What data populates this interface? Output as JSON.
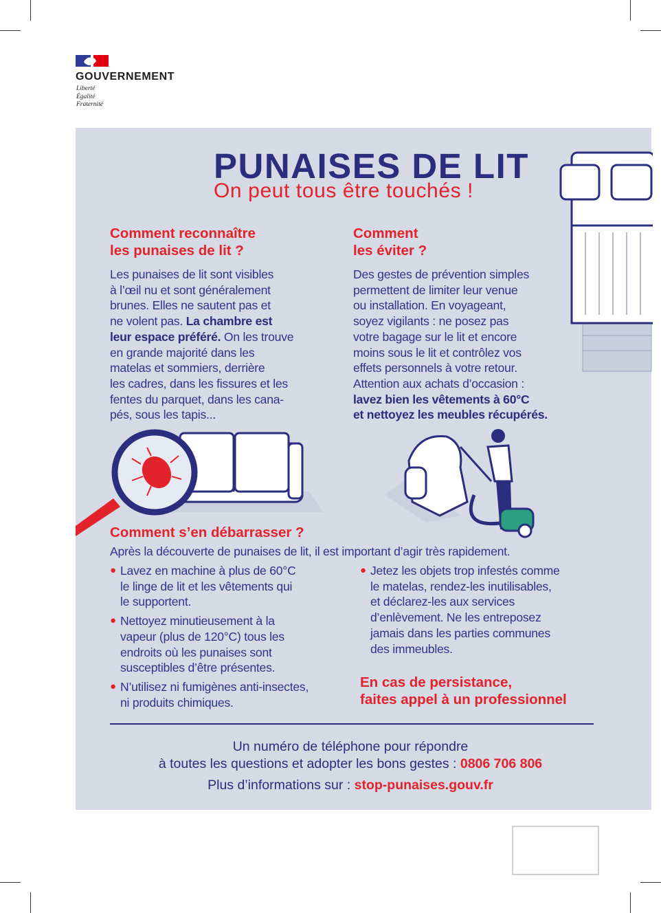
{
  "colors": {
    "navy": "#2b2d7e",
    "red": "#e3232b",
    "panel": "#d5dae5",
    "flag_blue": "#2f3c96",
    "flag_red": "#e1000f",
    "green": "#2aa07f"
  },
  "logo": {
    "name": "GOUVERNEMENT",
    "motto": [
      "Liberté",
      "Égalité",
      "Fraternité"
    ]
  },
  "title": "PUNAISES DE LIT",
  "subtitle": "On peut tous être touchés !",
  "section_recognize": {
    "heading": [
      "Comment reconnaître",
      "les punaises de lit ?"
    ],
    "lines": [
      [
        {
          "t": "Les punaises de lit sont visibles"
        }
      ],
      [
        {
          "t": "à l’œil nu et sont généralement"
        }
      ],
      [
        {
          "t": "brunes. Elles ne sautent pas et"
        }
      ],
      [
        {
          "t": "ne volent pas. "
        },
        {
          "t": "La chambre est",
          "b": true
        }
      ],
      [
        {
          "t": "leur espace préféré.",
          "b": true
        },
        {
          "t": " On les trouve"
        }
      ],
      [
        {
          "t": "en grande majorité dans les"
        }
      ],
      [
        {
          "t": "matelas et sommiers, derrière"
        }
      ],
      [
        {
          "t": "les cadres, dans les fissures et les"
        }
      ],
      [
        {
          "t": "fentes du parquet, dans les cana-"
        }
      ],
      [
        {
          "t": "pés, sous les tapis..."
        }
      ]
    ]
  },
  "section_avoid": {
    "heading": [
      "Comment",
      "les éviter ?"
    ],
    "lines": [
      [
        {
          "t": "Des gestes de prévention simples"
        }
      ],
      [
        {
          "t": "permettent de limiter leur venue"
        }
      ],
      [
        {
          "t": "ou installation. En voyageant,"
        }
      ],
      [
        {
          "t": "soyez vigilants : ne posez pas"
        }
      ],
      [
        {
          "t": "votre bagage sur le lit et encore"
        }
      ],
      [
        {
          "t": "moins sous le lit et contrôlez vos"
        }
      ],
      [
        {
          "t": "effets personnels à votre retour."
        }
      ],
      [
        {
          "t": "Attention aux achats d’occasion :"
        }
      ],
      [
        {
          "t": "lavez bien les vêtements à 60°C",
          "b": true
        }
      ],
      [
        {
          "t": "et nettoyez les meubles récupérés.",
          "b": true
        }
      ]
    ]
  },
  "section_remove": {
    "heading": "Comment s’en débarrasser ?",
    "intro": "Après la découverte de punaises de lit, il est important d’agir très rapidement.",
    "bullets_left": [
      [
        "Lavez en machine à plus de 60°C",
        "le linge de lit et les vêtements qui",
        "le supportent."
      ],
      [
        "Nettoyez minutieusement à la",
        "vapeur (plus de 120°C) tous les",
        "endroits où les punaises sont",
        "susceptibles d’être présentes."
      ],
      [
        "N’utilisez ni fumigènes anti-insectes,",
        "ni produits chimiques."
      ]
    ],
    "bullets_right": [
      [
        "Jetez les objets trop infestés comme",
        "le matelas, rendez-les inutilisables,",
        "et déclarez-les aux services",
        "d’enlèvement. Ne les entreposez",
        "jamais dans les parties communes",
        "des immeubles."
      ]
    ],
    "callout": [
      "En cas de persistance,",
      "faites appel à un professionnel"
    ]
  },
  "footer": {
    "line1": "Un numéro de téléphone pour répondre",
    "line2": "à toutes les questions et adopter les bons gestes : ",
    "phone": "0806 706 806",
    "line3": "Plus d’informations sur : ",
    "website": "stop-punaises.gouv.fr"
  }
}
